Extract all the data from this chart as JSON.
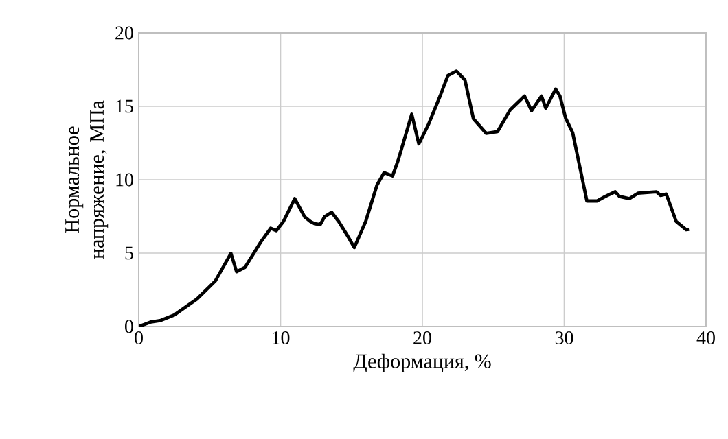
{
  "chart_data": {
    "type": "line",
    "xlabel": "Деформация, %",
    "ylabel": "Нормальное напряжение, МПа",
    "xlim": [
      0,
      40
    ],
    "ylim": [
      0,
      20
    ],
    "xticks": [
      0,
      10,
      20,
      30,
      40
    ],
    "yticks": [
      0,
      5,
      10,
      15,
      20
    ],
    "grid": true,
    "marker": "none",
    "line_style": "solid",
    "series": [
      {
        "color": "#000000",
        "x": [
          0,
          0.87,
          1.5,
          2.5,
          4.1,
          5.4,
          6.5,
          6.9,
          7.5,
          8.6,
          9.3,
          9.7,
          10.2,
          11.0,
          11.7,
          12.1,
          12.4,
          12.8,
          13.1,
          13.6,
          14.1,
          14.7,
          15.2,
          16.0,
          16.8,
          17.3,
          17.9,
          18.3,
          19.25,
          19.75,
          20.4,
          21.25,
          21.8,
          22.4,
          23.0,
          23.6,
          24.5,
          25.3,
          26.2,
          27.2,
          27.7,
          28.4,
          28.7,
          29.4,
          29.7,
          30.1,
          30.6,
          31.6,
          32.3,
          32.9,
          33.6,
          33.9,
          34.6,
          35.2,
          36.5,
          36.8,
          37.2,
          37.9,
          38.6,
          38.8
        ],
        "values": [
          0,
          0.31,
          0.4,
          0.78,
          1.87,
          3.1,
          4.98,
          3.73,
          4.04,
          5.75,
          6.69,
          6.53,
          7.15,
          8.71,
          7.47,
          7.15,
          7.0,
          6.94,
          7.47,
          7.78,
          7.15,
          6.22,
          5.38,
          7.15,
          9.64,
          10.48,
          10.26,
          11.35,
          14.46,
          12.44,
          13.7,
          15.7,
          17.1,
          17.4,
          16.8,
          14.15,
          13.16,
          13.28,
          14.77,
          15.7,
          14.7,
          15.7,
          14.87,
          16.17,
          15.7,
          14.2,
          13.2,
          8.55,
          8.55,
          8.86,
          9.18,
          8.86,
          8.71,
          9.08,
          9.18,
          8.93,
          9.02,
          7.15,
          6.59,
          6.62
        ]
      }
    ]
  }
}
